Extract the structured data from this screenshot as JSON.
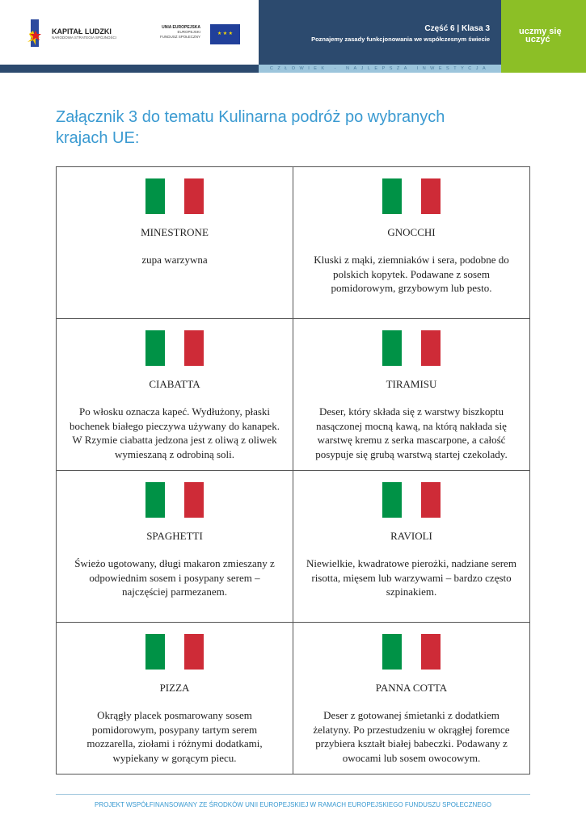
{
  "header": {
    "logo1_title": "KAPITAŁ LUDZKI",
    "logo1_sub": "NARODOWA STRATEGIA SPÓJNOŚCI",
    "eu_title": "UNIA EUROPEJSKA",
    "eu_line2": "EUROPEJSKI",
    "eu_line3": "FUNDUSZ SPOŁECZNY",
    "part": "Część 6 | Klasa 3",
    "subtitle": "Poznajemy zasady funkcjonowania we współczesnym świecie",
    "strip": "CZŁOWIEK - NAJLEPSZA INWESTYCJA",
    "brand_line1": "uczmy się",
    "brand_line2": "uczyć"
  },
  "title": "Załącznik 3 do tematu Kulinarna podróż po wybranych krajach UE:",
  "flag_colors": [
    "#009246",
    "#ffffff",
    "#ce2b37"
  ],
  "cards": [
    {
      "name": "MINESTRONE",
      "desc": "zupa warzywna"
    },
    {
      "name": "GNOCCHI",
      "desc": "Kluski z mąki, ziemniaków i sera, podobne do polskich kopytek. Podawane z sosem pomidorowym, grzybowym lub pesto."
    },
    {
      "name": "CIABATTA",
      "desc": "Po włosku oznacza kapeć. Wydłużony, płaski bochenek białego pieczywa używany do kanapek. W Rzymie ciabatta jedzona jest z oliwą z oliwek wymieszaną z odrobiną soli."
    },
    {
      "name": "TIRAMISU",
      "desc": "Deser, który składa się z warstwy biszkoptu nasączonej mocną kawą, na którą nakłada się warstwę kremu z serka mascarpone, a całość posypuje się grubą warstwą startej czekolady."
    },
    {
      "name": "SPAGHETTI",
      "desc": "Świeżo ugotowany, długi makaron zmieszany z odpowiednim sosem i posypany serem – najczęściej parmezanem."
    },
    {
      "name": "RAVIOLI",
      "desc": "Niewielkie, kwadratowe pierożki, nadziane serem risotta, mięsem lub warzywami – bardzo często szpinakiem."
    },
    {
      "name": "PIZZA",
      "desc": "Okrągły placek posmarowany sosem pomidorowym, posypany tartym serem mozzarella, ziołami i różnymi dodatkami, wypiekany w gorącym piecu."
    },
    {
      "name": "PANNA COTTA",
      "desc": "Deser z gotowanej śmietanki z dodatkiem żelatyny. Po przestudzeniu w okrągłej foremce przybiera kształt białej babeczki. Podawany z owocami lub sosem owocowym."
    }
  ],
  "footer": "PROJEKT WSPÓŁFINANSOWANY ZE ŚRODKÓW UNII EUROPEJSKIEJ W RAMACH EUROPEJSKIEGO FUNDUSZU SPOŁECZNEGO"
}
